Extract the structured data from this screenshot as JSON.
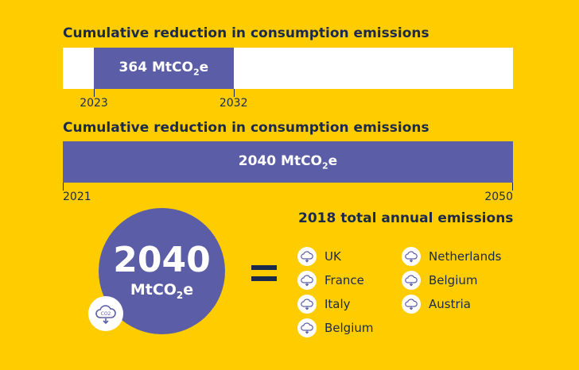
{
  "chart_data": [
    {
      "type": "bar",
      "title": "Cumulative reduction in consumption emissions",
      "axis": {
        "min": 2021,
        "max": 2050
      },
      "bar": {
        "start": 2023,
        "end": 2032,
        "value": "364",
        "unit": "MtCO",
        "unit_sub": "2",
        "unit_tail": "e"
      },
      "tick_labels": [
        "2023",
        "2032"
      ]
    },
    {
      "type": "bar",
      "title": "Cumulative reduction in consumption emissions",
      "axis": {
        "min": 2021,
        "max": 2050
      },
      "bar": {
        "start": 2021,
        "end": 2050,
        "value": "2040",
        "unit": "MtCO",
        "unit_sub": "2",
        "unit_tail": "e"
      },
      "tick_labels": [
        "2021",
        "2050"
      ]
    }
  ],
  "circle": {
    "value": "2040",
    "unit": "MtCO",
    "unit_sub": "2",
    "unit_tail": "e",
    "icon": "co2-cloud-icon"
  },
  "equals_sign": "=",
  "emissions": {
    "title": "2018 total annual emissions",
    "icon": "co2-cloud-icon",
    "left_column": [
      "UK",
      "France",
      "Italy",
      "Belgium"
    ],
    "right_column": [
      "Netherlands",
      "Belgium",
      "Austria"
    ]
  },
  "colors": {
    "background": "#FFCC00",
    "bar": "#5B5EA6",
    "text": "#1B2A4A",
    "track": "#FFFFFF"
  }
}
